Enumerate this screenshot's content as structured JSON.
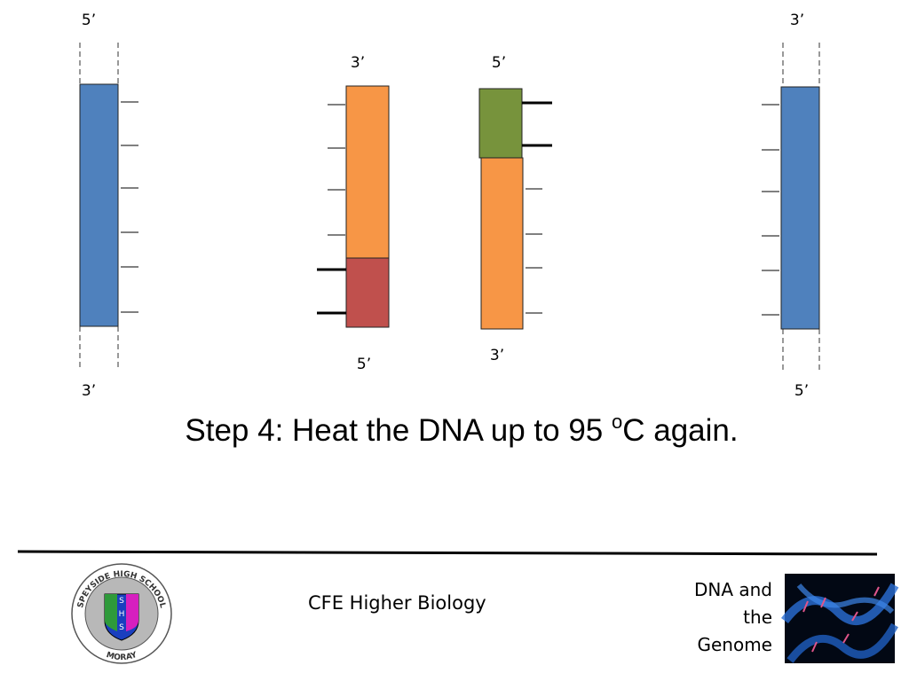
{
  "diagram": {
    "strands": [
      {
        "top": "5’",
        "bottom": "3’"
      },
      {
        "top": "3’",
        "bottom": "5’"
      },
      {
        "top": "5’",
        "bottom": "3’"
      },
      {
        "top": "3’",
        "bottom": "5’"
      }
    ]
  },
  "caption": {
    "before": "Step 4: Heat the DNA up to 95 ",
    "superscript": "o",
    "after": "C again."
  },
  "footer": {
    "course": "CFE Higher Biology",
    "topic": [
      "DNA and",
      "the",
      "Genome"
    ],
    "logo": {
      "arc_top": "SPEYSIDE HIGH SCHOOL",
      "arc_bottom": "MORAY",
      "letters": [
        "S",
        "H",
        "S"
      ]
    }
  }
}
